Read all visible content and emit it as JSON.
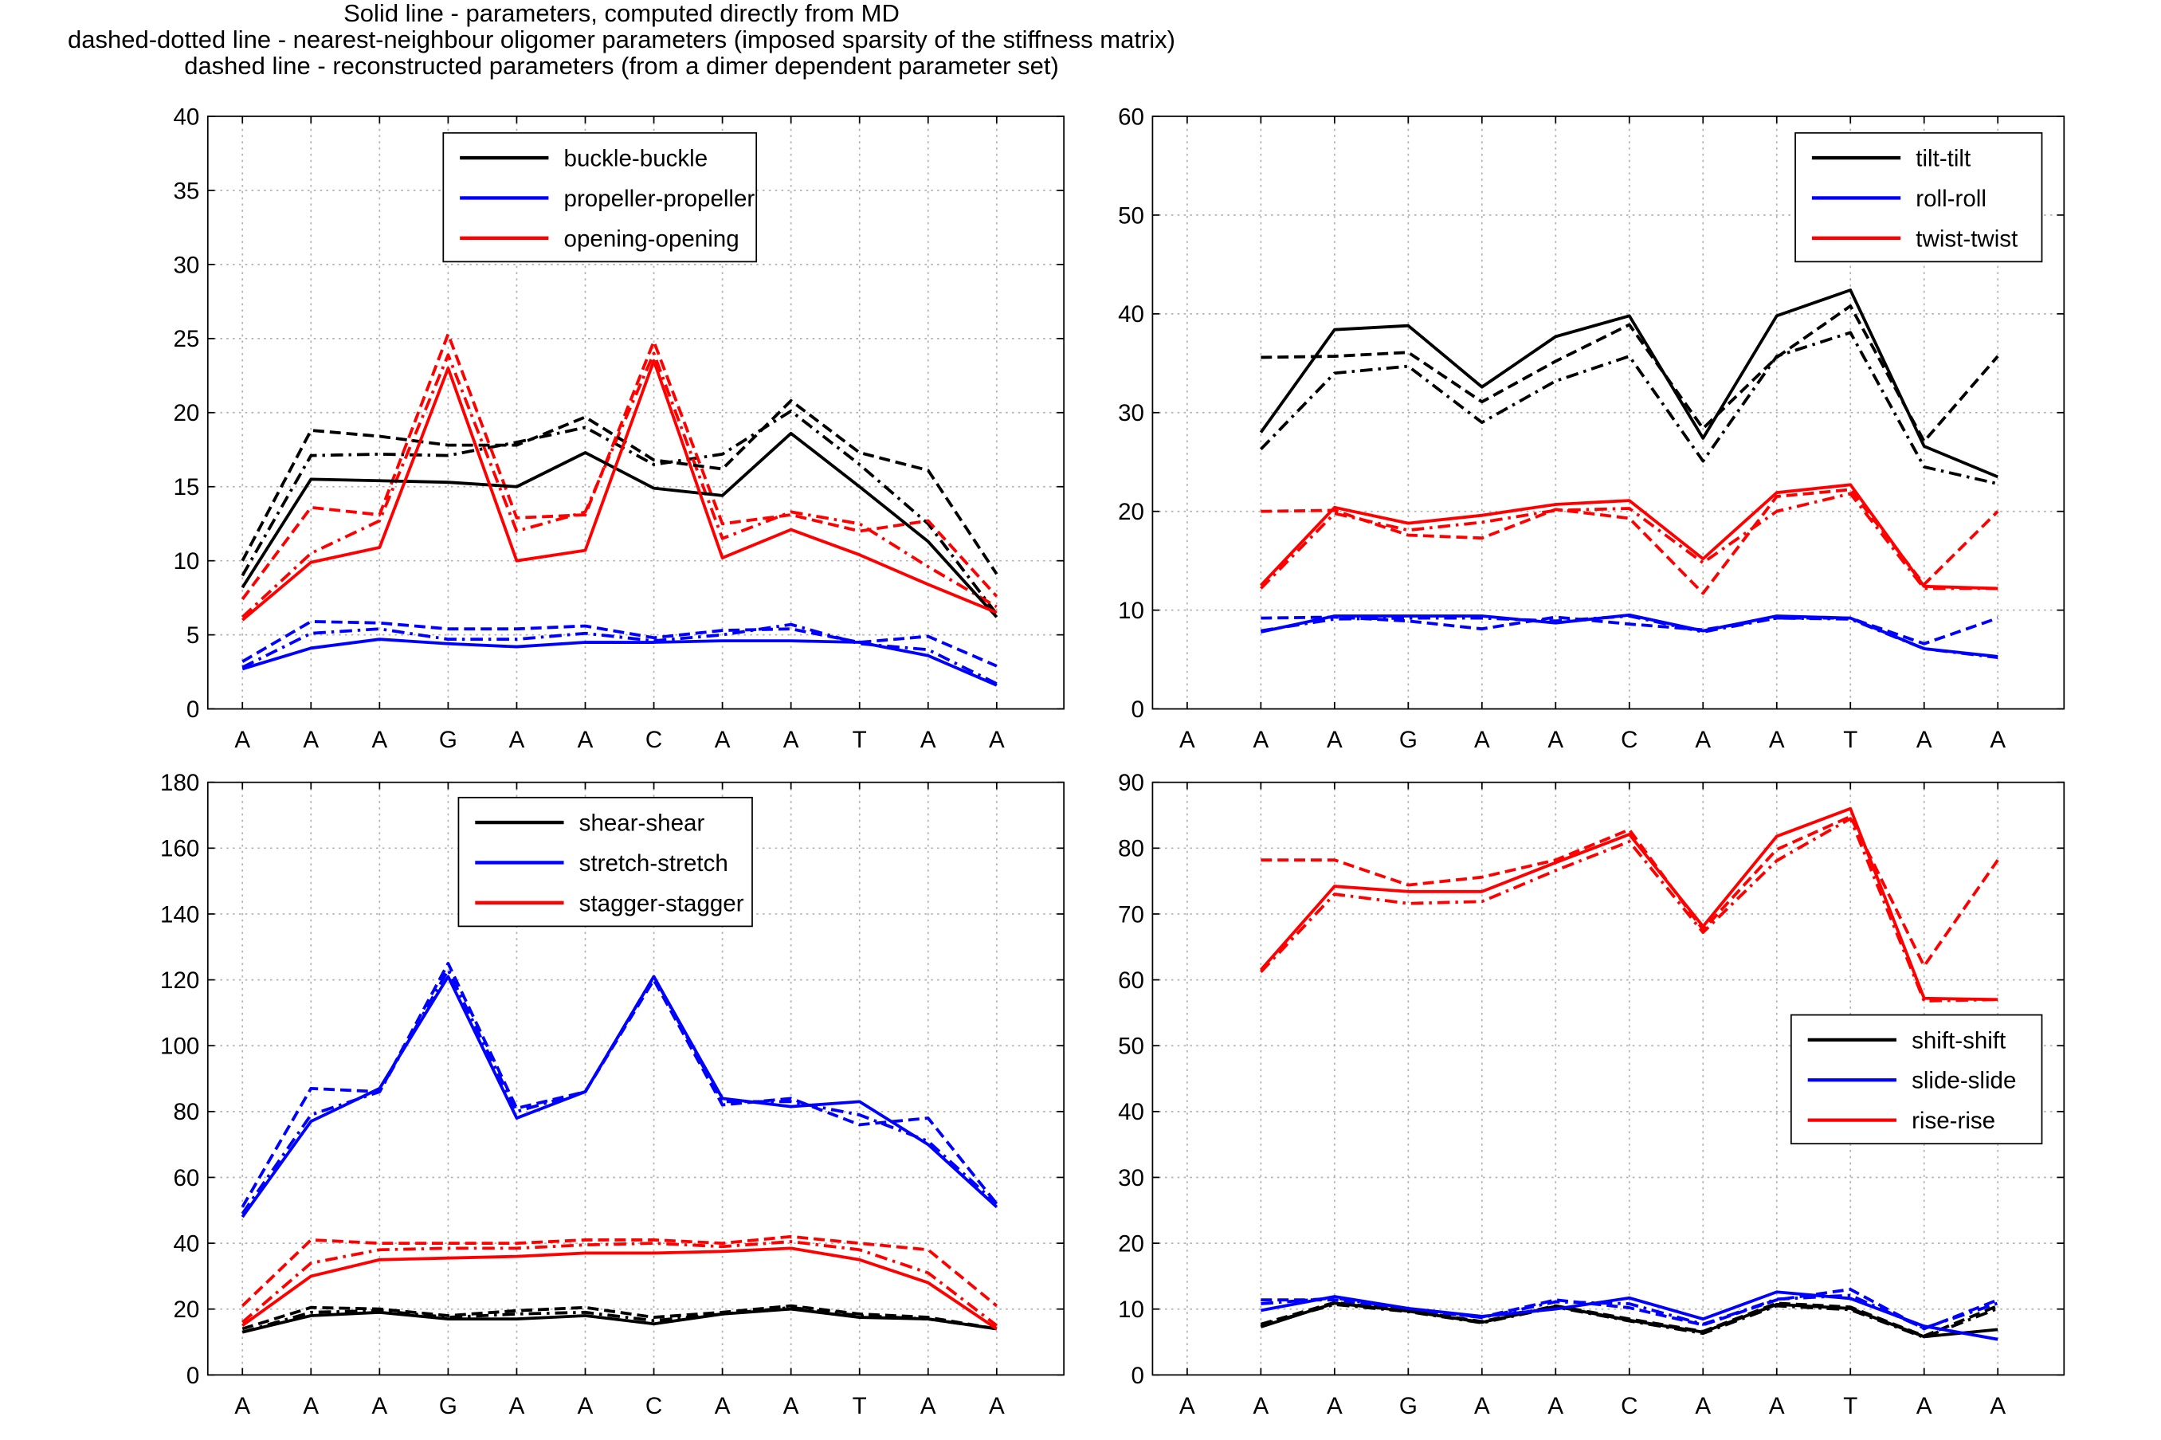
{
  "header": {
    "lines": [
      "Solid line - parameters, computed directly from MD",
      "dashed-dotted line - nearest-neighbour oligomer parameters (imposed sparsity of the stiffness matrix)",
      "dashed line - reconstructed parameters (from a dimer dependent parameter set)"
    ]
  },
  "colors": {
    "black": "#000000",
    "blue": "#0000ff",
    "red": "#ff0000",
    "grid": "#b3b3b3"
  },
  "chart_data": [
    {
      "type": "line",
      "position": "top-left",
      "categories": [
        "A",
        "A",
        "A",
        "G",
        "A",
        "A",
        "C",
        "A",
        "A",
        "T",
        "A",
        "A"
      ],
      "ylim": [
        0,
        40
      ],
      "yticks": [
        0,
        5,
        10,
        15,
        20,
        25,
        30,
        35,
        40
      ],
      "grid": true,
      "legend_position": "top-center",
      "series": [
        {
          "name": "buckle-buckle",
          "color": "#000000",
          "style": "solid",
          "values": [
            8.2,
            15.5,
            15.4,
            15.3,
            15.0,
            17.3,
            14.9,
            14.4,
            18.6,
            15.0,
            11.3,
            6.2
          ]
        },
        {
          "name": "propeller-propeller",
          "color": "#0000ff",
          "style": "solid",
          "values": [
            2.7,
            4.1,
            4.7,
            4.4,
            4.2,
            4.5,
            4.5,
            4.6,
            4.6,
            4.5,
            3.6,
            1.6
          ]
        },
        {
          "name": "opening-opening",
          "color": "#ff0000",
          "style": "solid",
          "values": [
            6.0,
            9.9,
            10.9,
            23.0,
            10.0,
            10.7,
            23.5,
            10.2,
            12.1,
            10.4,
            8.4,
            6.5
          ]
        },
        {
          "color": "#000000",
          "style": "dashdot",
          "values": [
            9.0,
            17.1,
            17.2,
            17.1,
            18.0,
            19.0,
            16.5,
            17.2,
            20.1,
            16.5,
            12.5,
            6.4
          ]
        },
        {
          "color": "#0000ff",
          "style": "dashdot",
          "values": [
            2.8,
            5.1,
            5.4,
            4.7,
            4.7,
            5.1,
            4.6,
            5.0,
            5.7,
            4.4,
            4.0,
            1.7
          ]
        },
        {
          "color": "#ff0000",
          "style": "dashdot",
          "values": [
            6.2,
            10.5,
            12.7,
            23.9,
            12.0,
            13.3,
            24.0,
            11.5,
            13.3,
            12.5,
            9.6,
            6.9
          ]
        },
        {
          "color": "#000000",
          "style": "dashed",
          "values": [
            10.0,
            18.8,
            18.4,
            17.8,
            17.8,
            19.7,
            16.8,
            16.2,
            20.8,
            17.3,
            16.1,
            9.1
          ]
        },
        {
          "color": "#0000ff",
          "style": "dashed",
          "values": [
            3.2,
            5.9,
            5.8,
            5.4,
            5.4,
            5.6,
            4.8,
            5.3,
            5.4,
            4.5,
            4.9,
            2.9
          ]
        },
        {
          "color": "#ff0000",
          "style": "dashed",
          "values": [
            7.4,
            13.6,
            13.1,
            25.3,
            12.9,
            13.1,
            24.8,
            12.5,
            13.1,
            12.0,
            12.7,
            7.6
          ]
        }
      ]
    },
    {
      "type": "line",
      "position": "top-right",
      "categories": [
        "A",
        "A",
        "A",
        "G",
        "A",
        "A",
        "C",
        "A",
        "A",
        "T",
        "A",
        "A"
      ],
      "ylim": [
        0,
        60
      ],
      "yticks": [
        0,
        10,
        20,
        30,
        40,
        50,
        60
      ],
      "grid": true,
      "legend_position": "top-right",
      "series": [
        {
          "name": "tilt-tilt",
          "color": "#000000",
          "style": "solid",
          "values": [
            null,
            28.0,
            38.4,
            38.8,
            32.6,
            37.7,
            39.8,
            27.4,
            39.8,
            42.4,
            26.6,
            23.5
          ]
        },
        {
          "name": "roll-roll",
          "color": "#0000ff",
          "style": "solid",
          "values": [
            null,
            7.8,
            9.4,
            9.4,
            9.4,
            8.7,
            9.5,
            7.9,
            9.4,
            9.2,
            6.1,
            5.3
          ]
        },
        {
          "name": "twist-twist",
          "color": "#ff0000",
          "style": "solid",
          "values": [
            null,
            12.5,
            20.4,
            18.8,
            19.6,
            20.7,
            21.1,
            15.2,
            21.9,
            22.7,
            12.4,
            12.2
          ]
        },
        {
          "color": "#000000",
          "style": "dashdot",
          "values": [
            null,
            26.3,
            34.0,
            34.7,
            29.0,
            33.2,
            35.7,
            25.1,
            35.7,
            38.1,
            24.5,
            22.8
          ]
        },
        {
          "color": "#0000ff",
          "style": "dashdot",
          "values": [
            null,
            7.9,
            9.1,
            9.2,
            9.2,
            8.9,
            9.4,
            7.8,
            9.2,
            9.1,
            6.1,
            5.2
          ]
        },
        {
          "color": "#ff0000",
          "style": "dashdot",
          "values": [
            null,
            12.2,
            19.8,
            18.1,
            18.9,
            20.1,
            20.3,
            14.8,
            20.0,
            21.8,
            12.2,
            12.2
          ]
        },
        {
          "color": "#000000",
          "style": "dashed",
          "values": [
            null,
            35.6,
            35.7,
            36.1,
            31.1,
            35.2,
            38.9,
            28.4,
            35.6,
            40.8,
            27.1,
            35.7
          ]
        },
        {
          "color": "#0000ff",
          "style": "dashed",
          "values": [
            null,
            9.2,
            9.3,
            8.9,
            8.1,
            9.3,
            8.6,
            8.0,
            9.2,
            9.2,
            6.6,
            9.2
          ]
        },
        {
          "color": "#ff0000",
          "style": "dashed",
          "values": [
            null,
            20.0,
            20.1,
            17.6,
            17.3,
            20.2,
            19.3,
            11.7,
            21.5,
            22.2,
            12.6,
            20.0
          ]
        }
      ]
    },
    {
      "type": "line",
      "position": "bottom-left",
      "categories": [
        "A",
        "A",
        "A",
        "G",
        "A",
        "A",
        "C",
        "A",
        "A",
        "T",
        "A",
        "A"
      ],
      "ylim": [
        0,
        180
      ],
      "yticks": [
        0,
        20,
        40,
        60,
        80,
        100,
        120,
        140,
        160,
        180
      ],
      "grid": true,
      "legend_position": "top-center",
      "series": [
        {
          "name": "shear-shear",
          "color": "#000000",
          "style": "solid",
          "values": [
            13,
            18,
            19,
            17,
            17,
            18,
            15.5,
            18.5,
            20,
            17.5,
            17,
            14
          ]
        },
        {
          "name": "stretch-stretch",
          "color": "#0000ff",
          "style": "solid",
          "values": [
            48,
            77,
            87,
            121,
            78,
            86,
            121,
            84,
            81.5,
            83,
            70,
            51
          ]
        },
        {
          "name": "stagger-stagger",
          "color": "#ff0000",
          "style": "solid",
          "values": [
            15,
            30,
            35,
            35.5,
            36,
            37,
            37,
            37.5,
            38.5,
            35,
            28,
            14
          ]
        },
        {
          "color": "#000000",
          "style": "dashdot",
          "values": [
            13,
            19,
            19.5,
            17.5,
            18.5,
            19,
            16.5,
            18.5,
            20.5,
            18,
            17,
            14
          ]
        },
        {
          "color": "#0000ff",
          "style": "dashdot",
          "values": [
            49,
            79,
            86,
            123,
            80,
            86,
            121,
            83,
            83,
            79,
            71,
            52
          ]
        },
        {
          "color": "#ff0000",
          "style": "dashdot",
          "values": [
            16,
            34,
            38,
            38.5,
            38.5,
            39.5,
            40,
            39,
            40.5,
            38,
            31,
            15
          ]
        },
        {
          "color": "#000000",
          "style": "dashed",
          "values": [
            14,
            20.5,
            20,
            18,
            19.5,
            20.5,
            17.5,
            19,
            21,
            18.5,
            17.5,
            14
          ]
        },
        {
          "color": "#0000ff",
          "style": "dashed",
          "values": [
            51,
            87,
            86,
            125,
            81,
            86,
            120,
            82,
            84,
            76,
            78,
            52
          ]
        },
        {
          "color": "#ff0000",
          "style": "dashed",
          "values": [
            21,
            41,
            40,
            40,
            40,
            41,
            41,
            40,
            42,
            40,
            38,
            21
          ]
        }
      ]
    },
    {
      "type": "line",
      "position": "bottom-right",
      "categories": [
        "A",
        "A",
        "A",
        "G",
        "A",
        "A",
        "C",
        "A",
        "A",
        "T",
        "A",
        "A"
      ],
      "ylim": [
        0,
        90
      ],
      "yticks": [
        0,
        10,
        20,
        30,
        40,
        50,
        60,
        70,
        80,
        90
      ],
      "grid": true,
      "legend_position": "right",
      "series": [
        {
          "name": "shift-shift",
          "color": "#000000",
          "style": "solid",
          "values": [
            null,
            7.3,
            10.9,
            9.7,
            8.0,
            10.4,
            8.3,
            6.5,
            10.7,
            10.1,
            5.8,
            6.9
          ]
        },
        {
          "name": "slide-slide",
          "color": "#0000ff",
          "style": "solid",
          "values": [
            null,
            9.8,
            11.9,
            10.1,
            8.9,
            10.0,
            11.7,
            8.5,
            12.6,
            11.6,
            7.4,
            5.4
          ]
        },
        {
          "name": "rise-rise",
          "color": "#ff0000",
          "style": "solid",
          "values": [
            null,
            61.5,
            74.2,
            73.4,
            73.4,
            77.8,
            82.1,
            68.1,
            81.8,
            86.0,
            57.2,
            57.0
          ]
        },
        {
          "color": "#000000",
          "style": "dashdot",
          "values": [
            null,
            7.6,
            10.7,
            9.6,
            7.9,
            10.3,
            8.2,
            6.3,
            10.5,
            9.9,
            5.7,
            10.1
          ]
        },
        {
          "color": "#0000ff",
          "style": "dashdot",
          "values": [
            null,
            10.8,
            11.7,
            10.0,
            8.7,
            11.1,
            10.8,
            7.7,
            11.5,
            12.1,
            7.1,
            10.9
          ]
        },
        {
          "color": "#ff0000",
          "style": "dashdot",
          "values": [
            null,
            61.2,
            73.0,
            71.6,
            71.9,
            76.6,
            81.0,
            67.2,
            78.1,
            84.5,
            56.8,
            57.0
          ]
        },
        {
          "color": "#000000",
          "style": "dashed",
          "values": [
            null,
            7.7,
            11.0,
            9.8,
            8.1,
            10.5,
            8.5,
            6.6,
            10.9,
            10.3,
            5.9,
            10.5
          ]
        },
        {
          "color": "#0000ff",
          "style": "dashed",
          "values": [
            null,
            11.4,
            11.4,
            9.9,
            8.8,
            11.4,
            10.2,
            7.6,
            11.4,
            13.0,
            7.0,
            11.4
          ]
        },
        {
          "color": "#ff0000",
          "style": "dashed",
          "values": [
            null,
            78.2,
            78.2,
            74.4,
            75.6,
            78.2,
            82.8,
            67.6,
            79.8,
            84.8,
            62.1,
            78.2
          ]
        }
      ]
    }
  ]
}
